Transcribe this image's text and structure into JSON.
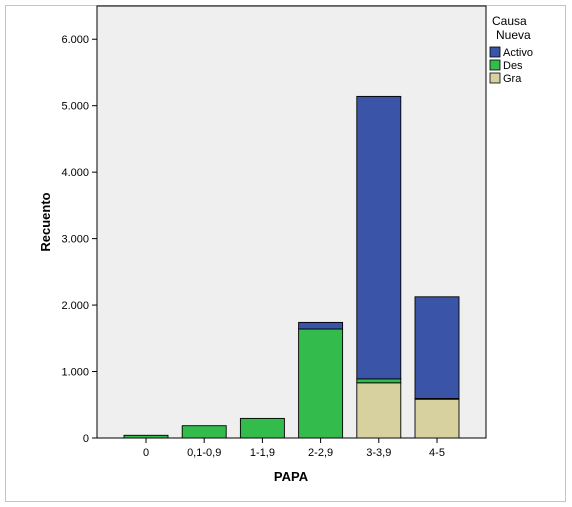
{
  "chart_data": {
    "type": "bar",
    "stacked": true,
    "xlabel": "PAPA",
    "ylabel": "Recuento",
    "ylim": [
      0,
      6500
    ],
    "yticks": [
      0,
      1000,
      2000,
      3000,
      4000,
      5000,
      6000
    ],
    "ytick_labels": [
      "0",
      "1.000",
      "2.000",
      "3.000",
      "4.000",
      "5.000",
      "6.000"
    ],
    "categories": [
      "0",
      "0,1-0,9",
      "1-1,9",
      "2-2,9",
      "3-3,9",
      "4-5"
    ],
    "legend": {
      "title": [
        "Causa",
        "Nueva"
      ],
      "placement": "top-right"
    },
    "series": [
      {
        "name": "Gra",
        "color": "#d6d19f",
        "values": [
          0,
          0,
          0,
          0,
          830,
          590
        ]
      },
      {
        "name": "Des",
        "color": "#33bc4c",
        "values": [
          40,
          185,
          295,
          1640,
          60,
          5
        ]
      },
      {
        "name": "Activo",
        "color": "#3a55a8",
        "values": [
          0,
          0,
          0,
          100,
          4250,
          1530
        ]
      }
    ],
    "legend_order": [
      "Activo",
      "Des",
      "Gra"
    ],
    "plot_background": "#efefef",
    "grid": false
  }
}
